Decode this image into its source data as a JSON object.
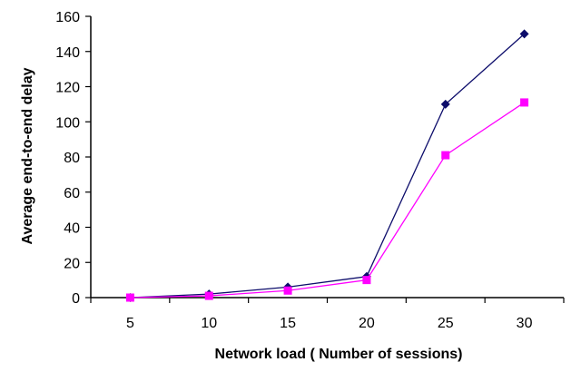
{
  "chart_data": {
    "type": "line",
    "title": "",
    "xlabel": "Network load ( Number of sessions)",
    "ylabel": "Average end-to-end delay",
    "categories": [
      "5",
      "10",
      "15",
      "20",
      "25",
      "30"
    ],
    "x": [
      5,
      10,
      15,
      20,
      25,
      30
    ],
    "ylim": [
      0,
      160
    ],
    "yticks": [
      0,
      20,
      40,
      60,
      80,
      100,
      120,
      140,
      160
    ],
    "grid": false,
    "legend": "none",
    "series": [
      {
        "values": [
          0,
          2,
          6,
          12,
          110,
          150
        ],
        "color": "#0d0d6b",
        "marker": "diamond"
      },
      {
        "values": [
          0,
          1,
          4,
          10,
          81,
          111
        ],
        "color": "#ff00ff",
        "marker": "square"
      }
    ]
  }
}
